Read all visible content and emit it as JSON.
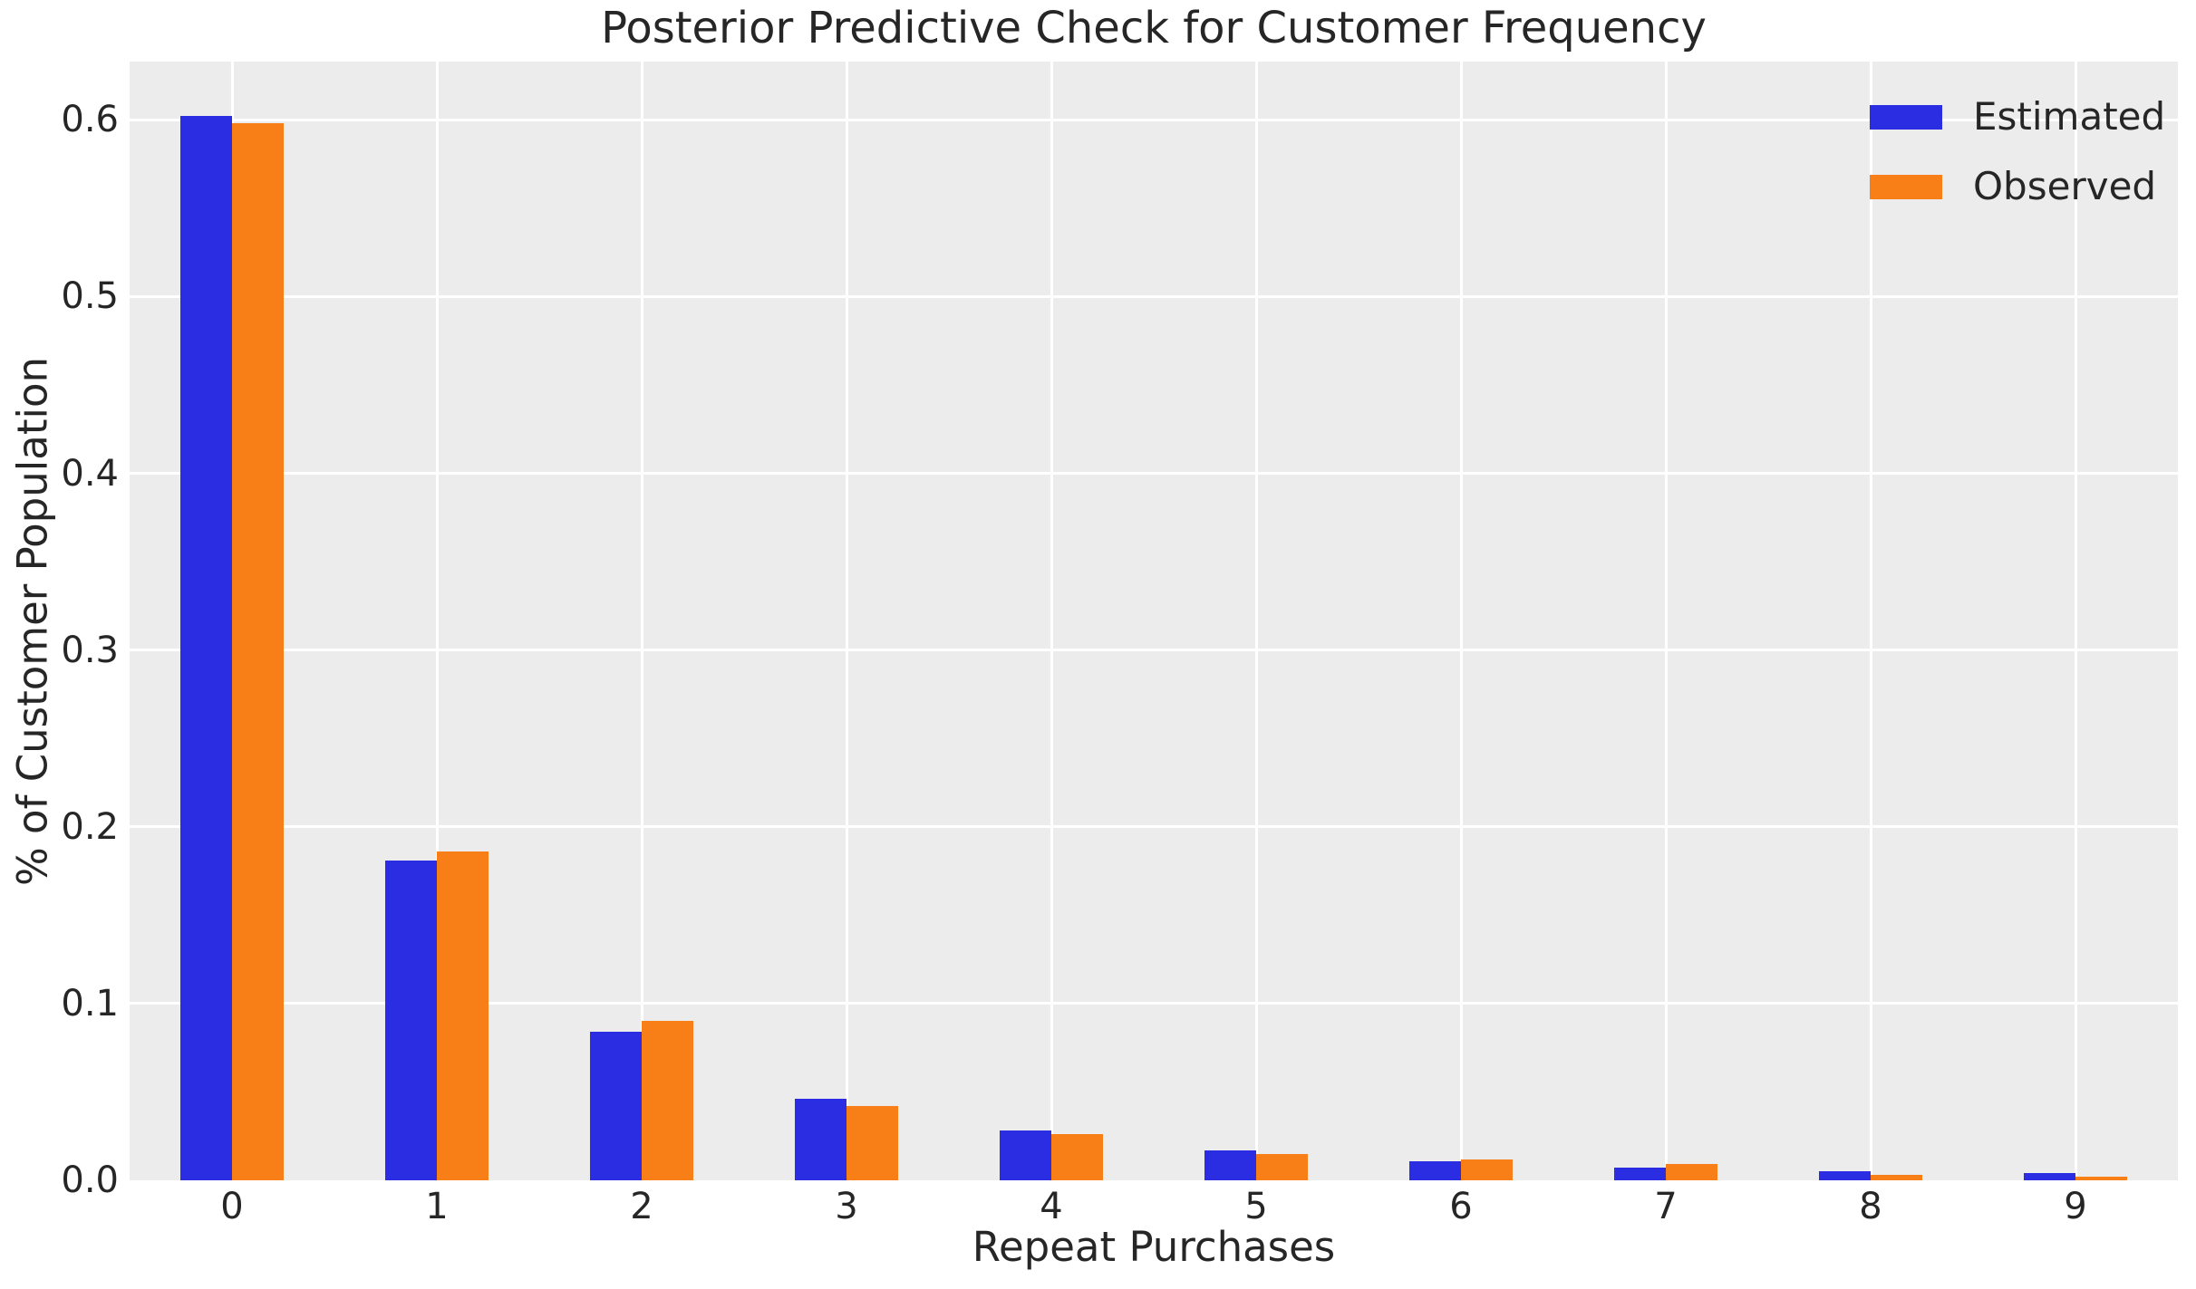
{
  "chart_data": {
    "type": "bar",
    "title": "Posterior Predictive Check for Customer Frequency",
    "xlabel": "Repeat Purchases",
    "ylabel": "% of Customer Population",
    "categories": [
      "0",
      "1",
      "2",
      "3",
      "4",
      "5",
      "6",
      "7",
      "8",
      "9"
    ],
    "series": [
      {
        "name": "Estimated",
        "color": "#2b2de3",
        "values": [
          0.602,
          0.181,
          0.084,
          0.046,
          0.028,
          0.017,
          0.011,
          0.007,
          0.005,
          0.004
        ]
      },
      {
        "name": "Observed",
        "color": "#f87f17",
        "values": [
          0.598,
          0.186,
          0.09,
          0.042,
          0.026,
          0.015,
          0.012,
          0.009,
          0.003,
          0.002
        ]
      }
    ],
    "ylim": [
      0,
      0.633
    ],
    "yticks": [
      "0.0",
      "0.1",
      "0.2",
      "0.3",
      "0.4",
      "0.5",
      "0.6"
    ],
    "grid": true,
    "legend_position": "upper right",
    "colors": {
      "figure_bg": "#ffffff",
      "plot_bg": "#ececec",
      "grid": "#ffffff",
      "text": "#262626"
    }
  }
}
